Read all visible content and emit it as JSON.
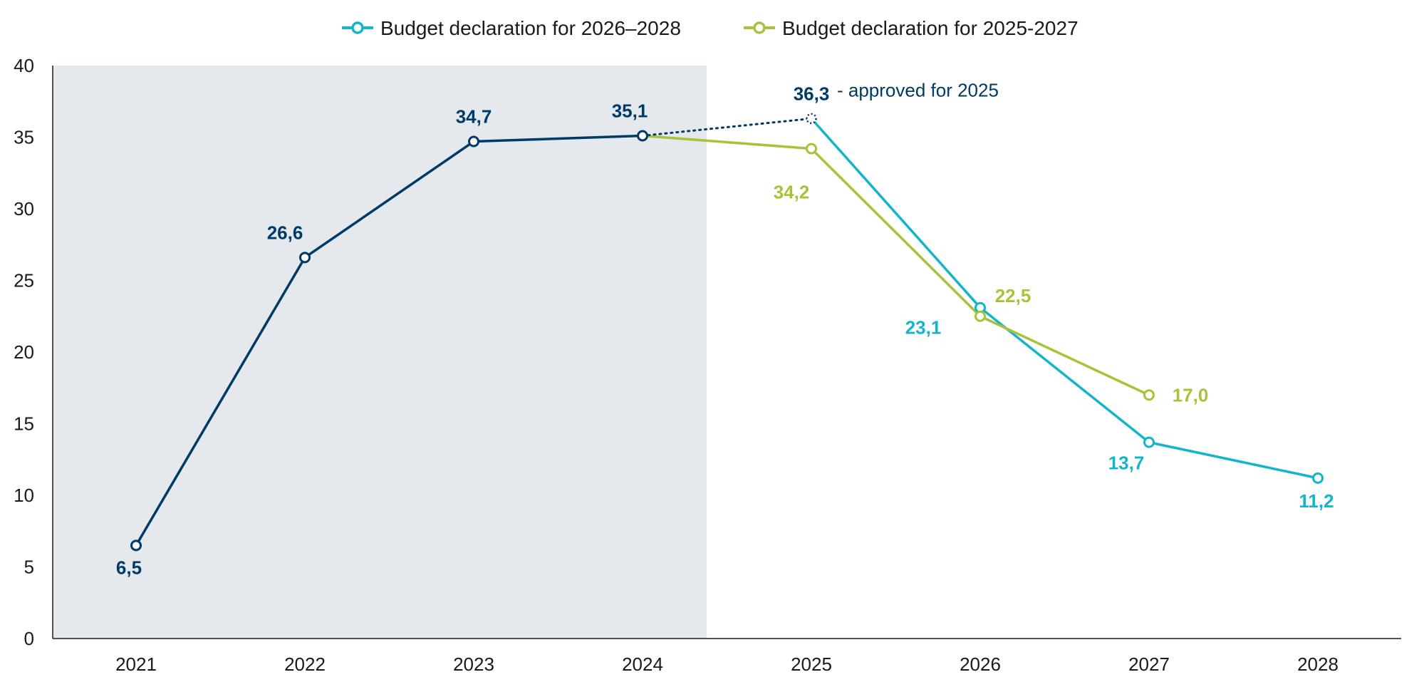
{
  "chart_data": {
    "type": "line",
    "x": [
      "2021",
      "2022",
      "2023",
      "2024",
      "2025",
      "2026",
      "2027",
      "2028"
    ],
    "ylim": [
      0,
      40
    ],
    "yticks": [
      "0",
      "5",
      "10",
      "15",
      "20",
      "25",
      "30",
      "35",
      "40"
    ],
    "grid": false,
    "legend_position": "top-center",
    "shaded_period": [
      "2021",
      "2024"
    ],
    "series": [
      {
        "key": "actual",
        "color": "#003a66",
        "points": [
          {
            "x": "2021",
            "y": 6.5,
            "label": "6,5"
          },
          {
            "x": "2022",
            "y": 26.6,
            "label": "26,6"
          },
          {
            "x": "2023",
            "y": 34.7,
            "label": "34,7"
          },
          {
            "x": "2024",
            "y": 35.1,
            "label": "35,1"
          }
        ]
      },
      {
        "key": "approved",
        "color": "#003a66",
        "style": "dotted",
        "points": [
          {
            "x": "2024",
            "y": 35.1
          },
          {
            "x": "2025",
            "y": 36.3,
            "label": "36,3"
          }
        ]
      },
      {
        "key": "b2026",
        "name": "Budget declaration for 2026–2028",
        "color": "#13b5ca",
        "points": [
          {
            "x": "2025",
            "y": 36.3
          },
          {
            "x": "2026",
            "y": 23.1,
            "label": "23,1"
          },
          {
            "x": "2027",
            "y": 13.7,
            "label": "13,7"
          },
          {
            "x": "2028",
            "y": 11.2,
            "label": "11,2"
          }
        ]
      },
      {
        "key": "b2025",
        "name": "Budget declaration for 2025-2027",
        "color": "#a8c23a",
        "points": [
          {
            "x": "2024",
            "y": 35.1
          },
          {
            "x": "2025",
            "y": 34.2,
            "label": "34,2"
          },
          {
            "x": "2026",
            "y": 22.5,
            "label": "22,5"
          },
          {
            "x": "2027",
            "y": 17.0,
            "label": "17,0"
          }
        ]
      }
    ],
    "annotations": [
      {
        "text": "- approved for 2025",
        "x": "2025",
        "y": 36.3,
        "color": "#003a66"
      }
    ]
  },
  "colors": {
    "shade": "#e5e9ee",
    "axis": "#1a1a1a"
  }
}
